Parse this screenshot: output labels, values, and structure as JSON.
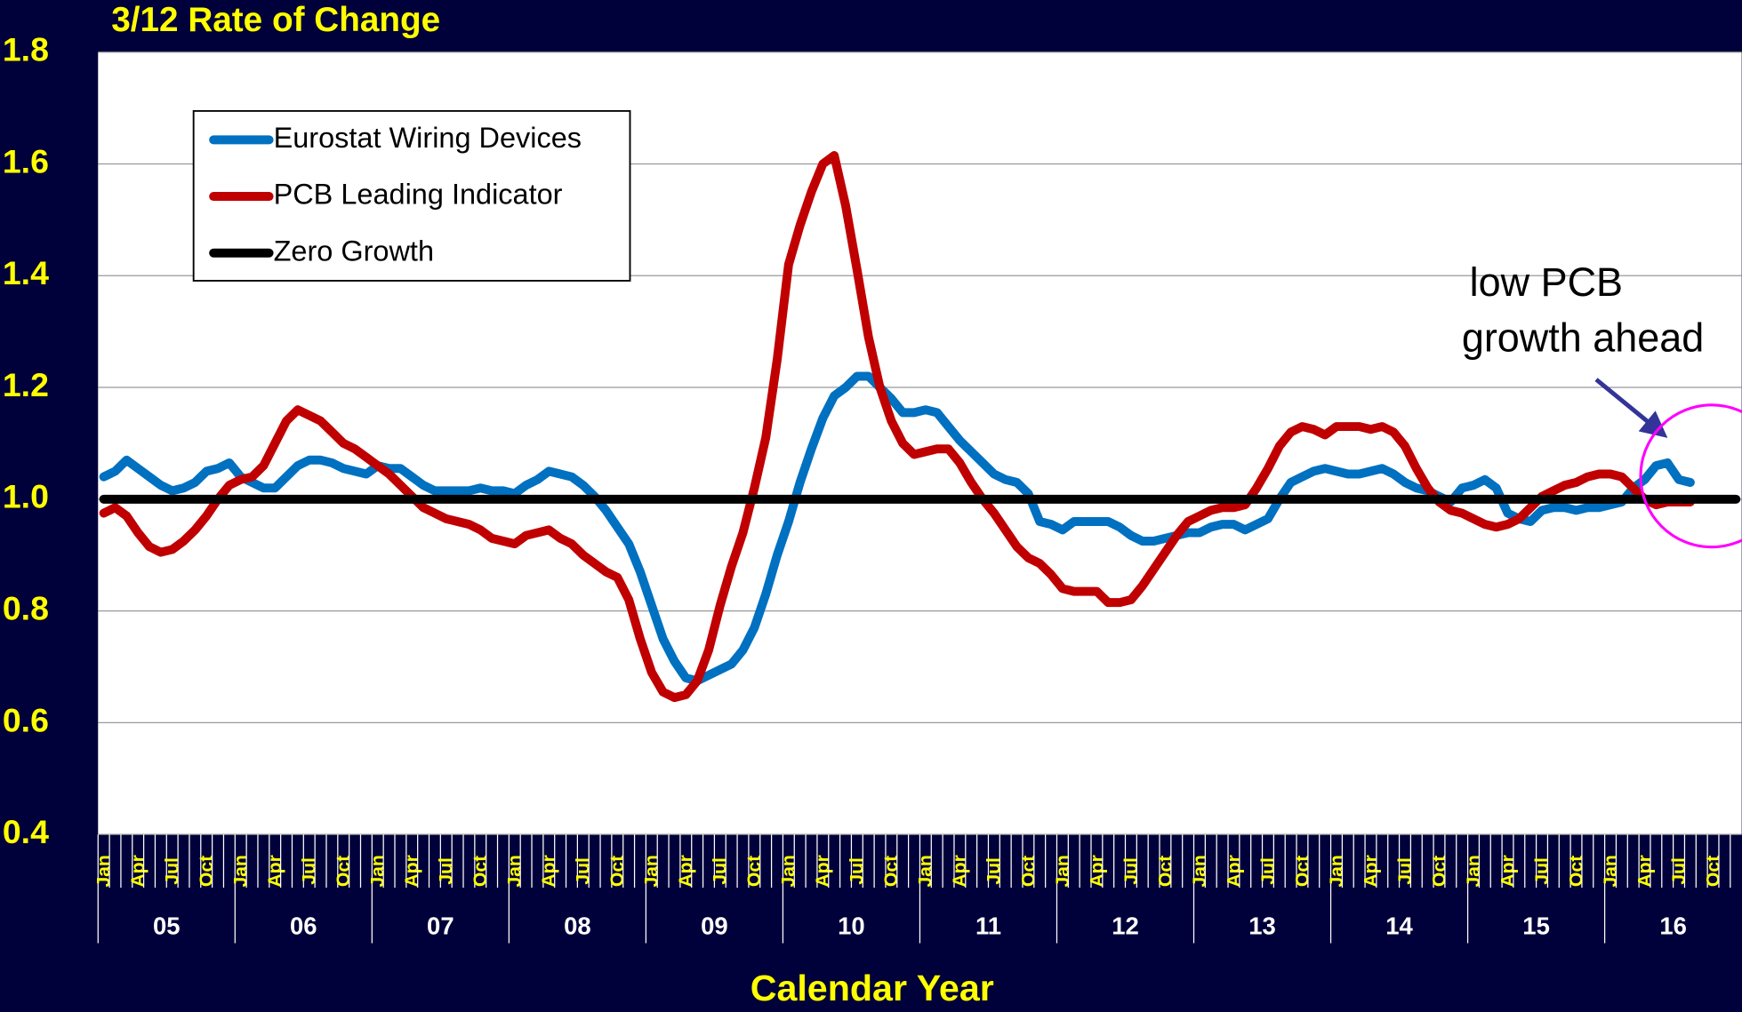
{
  "chart_data": {
    "type": "line",
    "title": "3/12 Rate of Change",
    "x_label": "Calendar Year",
    "annotation": [
      "low PCB",
      "growth ahead"
    ],
    "years": [
      "05",
      "06",
      "07",
      "08",
      "09",
      "10",
      "11",
      "12",
      "13",
      "14",
      "15",
      "16"
    ],
    "categories": [
      "Jan",
      null,
      null,
      "Apr",
      null,
      null,
      "Jul",
      null,
      null,
      "Oct",
      null,
      null,
      "Jan",
      null,
      null,
      "Apr",
      null,
      null,
      "Jul",
      null,
      null,
      "Oct",
      null,
      null,
      "Jan",
      null,
      null,
      "Apr",
      null,
      null,
      "Jul",
      null,
      null,
      "Oct",
      null,
      null,
      "Jan",
      null,
      null,
      "Apr",
      null,
      null,
      "Jul",
      null,
      null,
      "Oct",
      null,
      null,
      "Jan",
      null,
      null,
      "Apr",
      null,
      null,
      "Jul",
      null,
      null,
      "Oct",
      null,
      null,
      "Jan",
      null,
      null,
      "Apr",
      null,
      null,
      "Jul",
      null,
      null,
      "Oct",
      null,
      null,
      "Jan",
      null,
      null,
      "Apr",
      null,
      null,
      "Jul",
      null,
      null,
      "Oct",
      null,
      null,
      "Jan",
      null,
      null,
      "Apr",
      null,
      null,
      "Jul",
      null,
      null,
      "Oct",
      null,
      null,
      "Jan",
      null,
      null,
      "Apr",
      null,
      null,
      "Jul",
      null,
      null,
      "Oct",
      null,
      null,
      "Jan",
      null,
      null,
      "Apr",
      null,
      null,
      "Jul",
      null,
      null,
      "Oct",
      null,
      null,
      "Jan",
      null,
      null,
      "Apr",
      null,
      null,
      "Jul",
      null,
      null,
      "Oct",
      null,
      null,
      "Jan",
      null,
      null,
      "Apr",
      null,
      null,
      "Jul",
      null,
      null,
      "Oct",
      null,
      null
    ],
    "ylim": [
      0.4,
      1.8
    ],
    "yticks": [
      {
        "value": 0.4,
        "label": "0.4"
      },
      {
        "value": 0.6,
        "label": "0.6"
      },
      {
        "value": 0.8,
        "label": "0.8"
      },
      {
        "value": 1.0,
        "label": "1.0"
      },
      {
        "value": 1.2,
        "label": "1.2"
      },
      {
        "value": 1.4,
        "label": "1.4"
      },
      {
        "value": 1.6,
        "label": "1.6"
      },
      {
        "value": 1.8,
        "label": "1.8"
      }
    ],
    "grid": true,
    "series": [
      {
        "name": "Eurostat Wiring Devices",
        "color": "#0070c0",
        "values": [
          1.04,
          1.05,
          1.07,
          1.055,
          1.04,
          1.025,
          1.015,
          1.02,
          1.03,
          1.05,
          1.055,
          1.065,
          1.04,
          1.03,
          1.02,
          1.02,
          1.04,
          1.06,
          1.07,
          1.07,
          1.065,
          1.055,
          1.05,
          1.045,
          1.06,
          1.055,
          1.055,
          1.04,
          1.025,
          1.015,
          1.015,
          1.015,
          1.015,
          1.02,
          1.015,
          1.015,
          1.01,
          1.025,
          1.035,
          1.05,
          1.045,
          1.04,
          1.025,
          1.005,
          0.98,
          0.95,
          0.92,
          0.87,
          0.81,
          0.75,
          0.71,
          0.68,
          0.675,
          0.685,
          0.695,
          0.705,
          0.73,
          0.77,
          0.83,
          0.9,
          0.96,
          1.03,
          1.09,
          1.145,
          1.185,
          1.2,
          1.22,
          1.22,
          1.2,
          1.18,
          1.155,
          1.155,
          1.16,
          1.155,
          1.13,
          1.105,
          1.085,
          1.065,
          1.045,
          1.035,
          1.03,
          1.01,
          0.96,
          0.955,
          0.945,
          0.96,
          0.96,
          0.96,
          0.96,
          0.95,
          0.935,
          0.925,
          0.925,
          0.93,
          0.935,
          0.94,
          0.94,
          0.95,
          0.955,
          0.955,
          0.945,
          0.955,
          0.965,
          1.0,
          1.03,
          1.04,
          1.05,
          1.055,
          1.05,
          1.045,
          1.045,
          1.05,
          1.055,
          1.045,
          1.03,
          1.02,
          1.015,
          1.005,
          0.995,
          1.02,
          1.025,
          1.035,
          1.02,
          0.975,
          0.965,
          0.96,
          0.98,
          0.985,
          0.985,
          0.98,
          0.985,
          0.985,
          0.99,
          0.995,
          1.02,
          1.035,
          1.06,
          1.065,
          1.035,
          1.03,
          null,
          null,
          null,
          null
        ]
      },
      {
        "name": "PCB Leading Indicator",
        "color": "#c00000",
        "values": [
          0.975,
          0.985,
          0.97,
          0.94,
          0.915,
          0.905,
          0.91,
          0.925,
          0.945,
          0.97,
          1.0,
          1.025,
          1.035,
          1.04,
          1.06,
          1.1,
          1.14,
          1.16,
          1.15,
          1.14,
          1.12,
          1.1,
          1.09,
          1.075,
          1.06,
          1.045,
          1.025,
          1.005,
          0.985,
          0.975,
          0.965,
          0.96,
          0.955,
          0.945,
          0.93,
          0.925,
          0.92,
          0.935,
          0.94,
          0.945,
          0.93,
          0.92,
          0.9,
          0.885,
          0.87,
          0.86,
          0.82,
          0.75,
          0.69,
          0.655,
          0.645,
          0.65,
          0.675,
          0.73,
          0.81,
          0.88,
          0.94,
          1.02,
          1.11,
          1.25,
          1.42,
          1.49,
          1.55,
          1.6,
          1.615,
          1.525,
          1.41,
          1.29,
          1.2,
          1.14,
          1.1,
          1.08,
          1.085,
          1.09,
          1.09,
          1.065,
          1.03,
          1.0,
          0.975,
          0.945,
          0.915,
          0.895,
          0.885,
          0.865,
          0.84,
          0.835,
          0.835,
          0.835,
          0.815,
          0.815,
          0.82,
          0.845,
          0.875,
          0.905,
          0.935,
          0.96,
          0.97,
          0.98,
          0.985,
          0.985,
          0.99,
          1.02,
          1.055,
          1.095,
          1.12,
          1.13,
          1.125,
          1.115,
          1.13,
          1.13,
          1.13,
          1.125,
          1.13,
          1.12,
          1.095,
          1.055,
          1.02,
          0.995,
          0.98,
          0.975,
          0.965,
          0.955,
          0.95,
          0.955,
          0.965,
          0.985,
          1.005,
          1.015,
          1.025,
          1.03,
          1.04,
          1.045,
          1.045,
          1.04,
          1.02,
          1.0,
          0.99,
          0.995,
          0.995,
          0.995,
          null,
          null,
          null,
          null
        ]
      },
      {
        "name": "Zero Growth",
        "color": "#000000",
        "values": [
          1,
          1,
          1,
          1,
          1,
          1,
          1,
          1,
          1,
          1,
          1,
          1,
          1,
          1,
          1,
          1,
          1,
          1,
          1,
          1,
          1,
          1,
          1,
          1,
          1,
          1,
          1,
          1,
          1,
          1,
          1,
          1,
          1,
          1,
          1,
          1,
          1,
          1,
          1,
          1,
          1,
          1,
          1,
          1,
          1,
          1,
          1,
          1,
          1,
          1,
          1,
          1,
          1,
          1,
          1,
          1,
          1,
          1,
          1,
          1,
          1,
          1,
          1,
          1,
          1,
          1,
          1,
          1,
          1,
          1,
          1,
          1,
          1,
          1,
          1,
          1,
          1,
          1,
          1,
          1,
          1,
          1,
          1,
          1,
          1,
          1,
          1,
          1,
          1,
          1,
          1,
          1,
          1,
          1,
          1,
          1,
          1,
          1,
          1,
          1,
          1,
          1,
          1,
          1,
          1,
          1,
          1,
          1,
          1,
          1,
          1,
          1,
          1,
          1,
          1,
          1,
          1,
          1,
          1,
          1,
          1,
          1,
          1,
          1,
          1,
          1,
          1,
          1,
          1,
          1,
          1,
          1,
          1,
          1,
          1,
          1,
          1,
          1,
          1,
          1,
          1,
          1,
          1,
          1
        ]
      }
    ]
  }
}
